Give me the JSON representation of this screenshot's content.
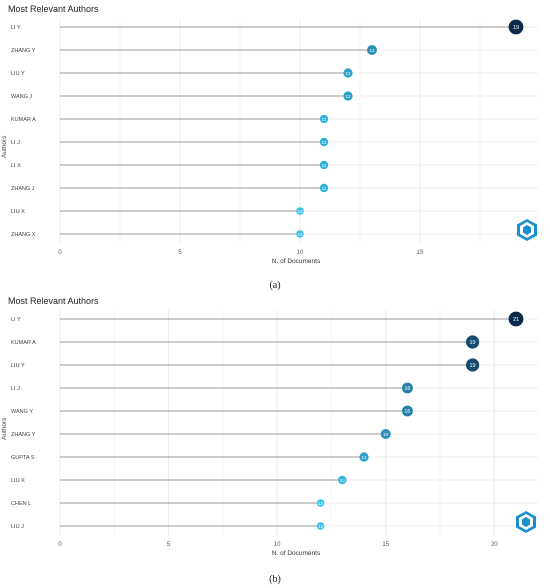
{
  "chart_data": [
    {
      "type": "lollipop",
      "title": "Most Relevant Authors",
      "xlabel": "N. of Documents",
      "ylabel": "Authors",
      "xticks": [
        0,
        5,
        10,
        15
      ],
      "xlim": [
        0,
        19
      ],
      "grid": true,
      "categories": [
        "LI Y",
        "ZHANG Y",
        "LIU Y",
        "WANG J",
        "KUMAR A",
        "LI J",
        "LI X",
        "ZHANG J",
        "LIU X",
        "ZHANG X"
      ],
      "values": [
        19,
        13,
        12,
        12,
        11,
        11,
        11,
        11,
        10,
        10
      ],
      "caption": "(a)"
    },
    {
      "type": "lollipop",
      "title": "Most Relevant Authors",
      "xlabel": "N. of Documents",
      "ylabel": "Authors",
      "xticks": [
        0,
        5,
        10,
        15,
        20
      ],
      "xlim": [
        0,
        21
      ],
      "grid": true,
      "categories": [
        "LI Y",
        "KUMAR A",
        "LIU Y",
        "LI J",
        "WANG Y",
        "ZHANG Y",
        "GUPTA S",
        "LIU X",
        "CHEN L",
        "LIU J"
      ],
      "values": [
        21,
        19,
        19,
        16,
        16,
        15,
        14,
        13,
        12,
        12
      ],
      "caption": "(b)"
    }
  ],
  "colors": {
    "dark": "#0b2a4a",
    "light": "#36c3f0",
    "stem": "#9a9a9a",
    "grid": "#ececec"
  },
  "logo_icon": "bibliometrix-hexagon-logo"
}
